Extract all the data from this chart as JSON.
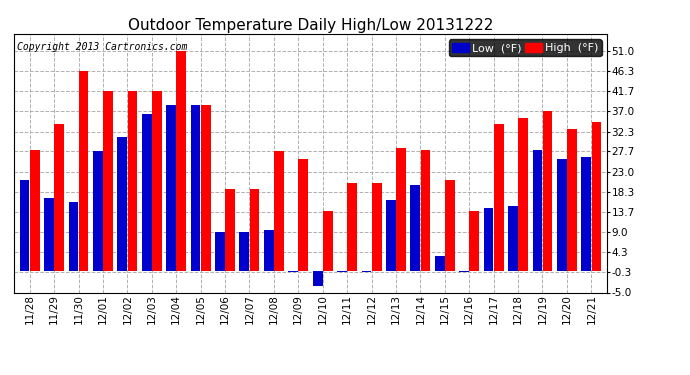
{
  "title": "Outdoor Temperature Daily High/Low 20131222",
  "copyright": "Copyright 2013 Cartronics.com",
  "legend_low": "Low  (°F)",
  "legend_high": "High  (°F)",
  "dates": [
    "11/28",
    "11/29",
    "11/30",
    "12/01",
    "12/02",
    "12/03",
    "12/04",
    "12/05",
    "12/06",
    "12/07",
    "12/08",
    "12/09",
    "12/10",
    "12/11",
    "12/12",
    "12/13",
    "12/14",
    "12/15",
    "12/16",
    "12/17",
    "12/18",
    "12/19",
    "12/20",
    "12/21"
  ],
  "high_values": [
    28.0,
    34.0,
    46.3,
    41.7,
    41.7,
    41.7,
    51.0,
    38.5,
    19.0,
    19.0,
    27.7,
    26.0,
    14.0,
    20.5,
    20.5,
    28.5,
    28.0,
    21.0,
    14.0,
    34.0,
    35.5,
    37.0,
    33.0,
    34.5
  ],
  "low_values": [
    21.0,
    17.0,
    16.0,
    27.7,
    31.0,
    36.5,
    38.5,
    38.5,
    9.0,
    9.0,
    9.5,
    -0.3,
    -3.5,
    -0.3,
    -0.3,
    16.5,
    20.0,
    3.5,
    -0.3,
    14.5,
    15.0,
    28.0,
    26.0,
    26.5
  ],
  "high_color": "#ff0000",
  "low_color": "#0000cc",
  "bg_color": "#ffffff",
  "grid_color": "#b0b0b0",
  "ylim": [
    -5.0,
    55.0
  ],
  "yticks": [
    -5.0,
    -0.3,
    4.3,
    9.0,
    13.7,
    18.3,
    23.0,
    27.7,
    32.3,
    37.0,
    41.7,
    46.3,
    51.0
  ],
  "title_fontsize": 11,
  "axis_fontsize": 7.5,
  "legend_fontsize": 8,
  "copyright_fontsize": 7
}
